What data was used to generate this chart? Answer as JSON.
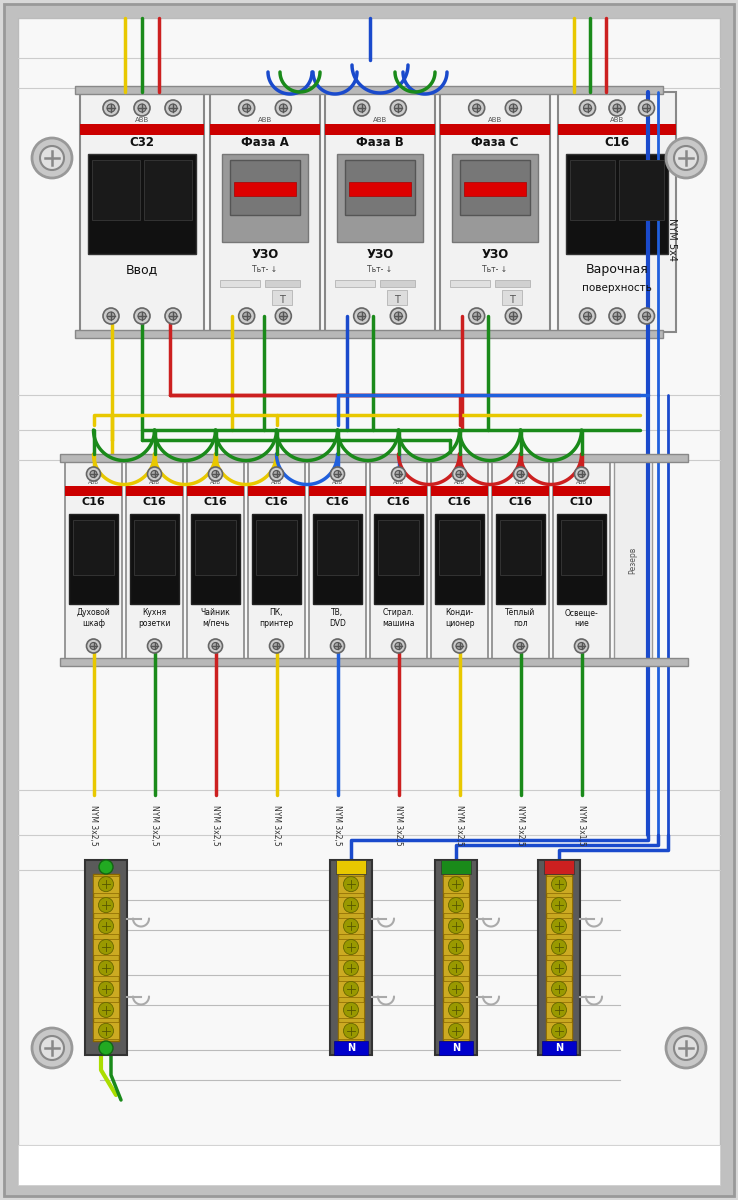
{
  "bg_outer": "#d8d8d8",
  "bg_inner": "#f5f5f5",
  "bg_white": "#ffffff",
  "wire": {
    "yellow": "#e8c800",
    "green": "#1a8a1a",
    "red": "#cc2020",
    "blue": "#1a4acc",
    "blue2": "#2060dd",
    "green_yellow": "#aadd00"
  },
  "breaker_labels_bottom": [
    "Духовой\nшкаф",
    "Кухня\nрозетки",
    "Чайник\nм/печь",
    "ПК,\nпринтер",
    "ТВ,\nDVD",
    "Стирал.\nмашина",
    "Конди-\nционер",
    "Тёплый\nпол",
    "Освеще-\nние",
    "Резерв"
  ],
  "breaker_ratings_bottom": [
    "C16",
    "C16",
    "C16",
    "C16",
    "C16",
    "C16",
    "C16",
    "C16",
    "C10",
    ""
  ],
  "cable_labels": [
    "NYM 3x2,5",
    "NYM 3x2,5",
    "NYM 3x2,5",
    "NYM 3x2,5",
    "NYM 3x2,5",
    "NYM 3x2,5",
    "NYM 3x2,5",
    "NYM 3x2,5",
    "NYM 3x1,5",
    ""
  ]
}
